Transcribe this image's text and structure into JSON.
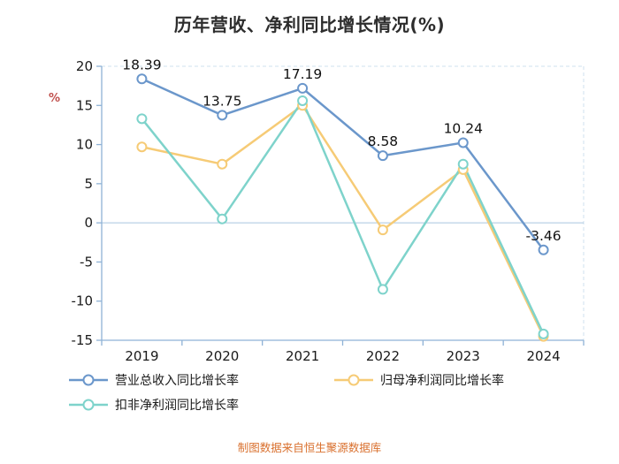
{
  "title": "历年营收、净利同比增长情况(%)",
  "footer": "制图数据来自恒生聚源数据库",
  "colors": {
    "axis": "#8fb2d6",
    "zero_line": "#a9c5df",
    "frame_dash": "#cfe0ef",
    "tick_text": "#1a1a1a",
    "data_label": "#111111",
    "ylabel": "#c0504d",
    "footer": "#d9702e",
    "title": "#2d2d2d"
  },
  "chart_data": {
    "type": "line",
    "title": "历年营收、净利同比增长情况(%)",
    "ylabel": "%",
    "xlabel": "",
    "ylim": [
      -15,
      20
    ],
    "yticks": [
      20,
      15,
      10,
      5,
      0,
      -5,
      -10,
      -15
    ],
    "grid": false,
    "legend_position": "bottom",
    "categories": [
      "2019",
      "2020",
      "2021",
      "2022",
      "2023",
      "2024"
    ],
    "series": [
      {
        "name": "营业总收入同比增长率",
        "color": "#6b97cb",
        "values": [
          18.39,
          13.75,
          17.19,
          8.58,
          10.24,
          -3.46
        ],
        "data_labels": [
          "18.39",
          "13.75",
          "17.19",
          "8.58",
          "10.24",
          "-3.46"
        ]
      },
      {
        "name": "归母净利润同比增长率",
        "color": "#f6cb76",
        "values": [
          9.7,
          7.5,
          15.0,
          -0.9,
          6.8,
          -14.5
        ]
      },
      {
        "name": "扣非净利润同比增长率",
        "color": "#7ed3cb",
        "values": [
          13.3,
          0.5,
          15.6,
          -8.5,
          7.5,
          -14.2
        ]
      }
    ]
  }
}
